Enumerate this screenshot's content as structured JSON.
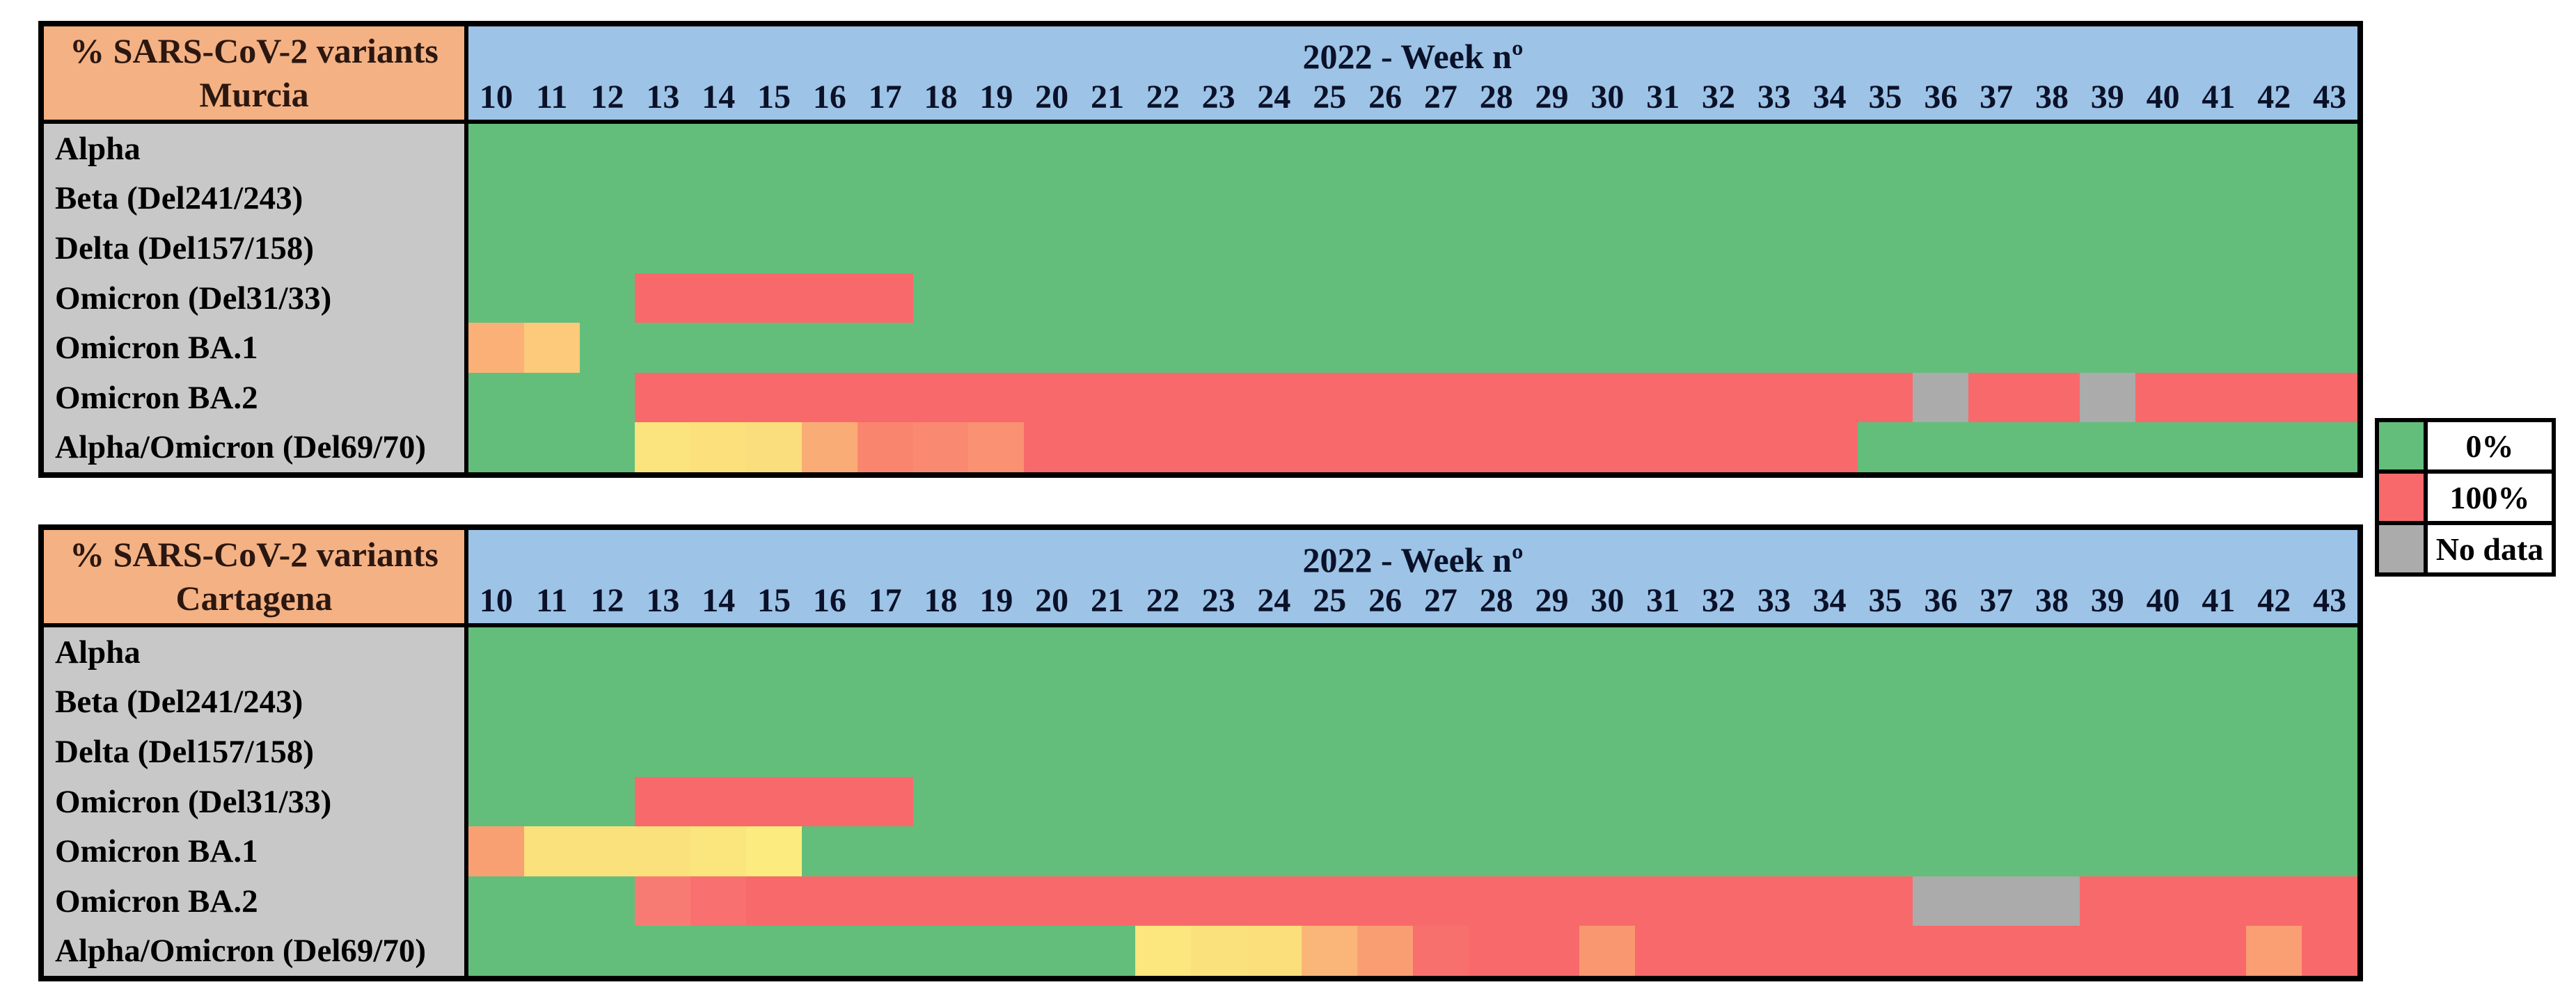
{
  "week_header": "2022 - Week nº",
  "weeks": [
    "10",
    "11",
    "12",
    "13",
    "14",
    "15",
    "16",
    "17",
    "18",
    "19",
    "20",
    "21",
    "22",
    "23",
    "24",
    "25",
    "26",
    "27",
    "28",
    "29",
    "30",
    "31",
    "32",
    "33",
    "34",
    "35",
    "36",
    "37",
    "38",
    "39",
    "40",
    "41",
    "42",
    "43"
  ],
  "palette": {
    "G": "#63BE7B",
    "R": "#F8696B",
    "N": "#ABABAB"
  },
  "colors": {
    "header_orange": "#F4B183",
    "header_blue": "#9DC3E6",
    "label_gray": "#C8C8C8",
    "border_black": "#000000",
    "green_0pct": "#63BE7B",
    "red_100pct": "#F8696B",
    "gray_nodata": "#ABABAB"
  },
  "legend": {
    "items": [
      {
        "label": "0%",
        "key": "G"
      },
      {
        "label": "100%",
        "key": "R"
      },
      {
        "label": "No data",
        "key": "N"
      }
    ]
  },
  "tables": [
    {
      "title_line1": "% SARS-CoV-2 variants",
      "region": "Murcia",
      "rows": [
        {
          "label": "Alpha",
          "cells": [
            "G*34"
          ]
        },
        {
          "label": "Beta (Del241/243)",
          "cells": [
            "G*34"
          ]
        },
        {
          "label": "Delta (Del157/158)",
          "cells": [
            "G*34"
          ]
        },
        {
          "label": "Omicron (Del31/33)",
          "cells": [
            "G*3",
            "R*5",
            "G*26"
          ]
        },
        {
          "label": "Omicron BA.1",
          "cells": [
            "#FBB077",
            "#FCCA7A",
            "G*32"
          ]
        },
        {
          "label": "Omicron BA.2",
          "cells": [
            "G*3",
            "R*23",
            "N",
            "R*2",
            "N",
            "R*4"
          ]
        },
        {
          "label": "Alpha/Omicron (Del69/70)",
          "cells": [
            "G*3",
            "#FBE37D",
            "#FBE07C",
            "#FADD7C",
            "#FAAC76",
            "#F9856E",
            "#F98970",
            "#F99172",
            "R*15",
            "G*9"
          ]
        }
      ]
    },
    {
      "title_line1": "% SARS-CoV-2 variants",
      "region": "Cartagena",
      "rows": [
        {
          "label": "Alpha",
          "cells": [
            "G*34"
          ]
        },
        {
          "label": "Beta (Del241/243)",
          "cells": [
            "G*34"
          ]
        },
        {
          "label": "Delta (Del157/158)",
          "cells": [
            "G*34"
          ]
        },
        {
          "label": "Omicron (Del31/33)",
          "cells": [
            "G*3",
            "R*5",
            "G*26"
          ]
        },
        {
          "label": "Omicron BA.1",
          "cells": [
            "#F9A073",
            "#FBE17C",
            "#FBE17C",
            "#FAE17C",
            "#FBE57D",
            "#FCEC80",
            "G*28"
          ]
        },
        {
          "label": "Omicron BA.2",
          "cells": [
            "G*3",
            "#F87B73",
            "#F87070",
            "R*21",
            "N*3",
            "R*5"
          ]
        },
        {
          "label": "Alpha/Omicron (Del69/70)",
          "cells": [
            "G*12",
            "#FCE67E",
            "#FBE17C",
            "#FBDF7B",
            "#FAB678",
            "#F99E73",
            "#F8706E",
            "R*2",
            "#F99870",
            "R*11",
            "#FA9E73",
            "R"
          ]
        }
      ]
    }
  ],
  "chart_data": [
    {
      "type": "heatmap",
      "title": "% SARS-CoV-2 variants Murcia",
      "xlabel": "2022 - Week nº",
      "x": [
        10,
        11,
        12,
        13,
        14,
        15,
        16,
        17,
        18,
        19,
        20,
        21,
        22,
        23,
        24,
        25,
        26,
        27,
        28,
        29,
        30,
        31,
        32,
        33,
        34,
        35,
        36,
        37,
        38,
        39,
        40,
        41,
        42,
        43
      ],
      "value_scale": "percent, 0 = green (#63BE7B), 100 = red (#F8696B), null = no data (gray)",
      "series": [
        {
          "name": "Alpha",
          "values": [
            0,
            0,
            0,
            0,
            0,
            0,
            0,
            0,
            0,
            0,
            0,
            0,
            0,
            0,
            0,
            0,
            0,
            0,
            0,
            0,
            0,
            0,
            0,
            0,
            0,
            0,
            0,
            0,
            0,
            0,
            0,
            0,
            0,
            0
          ]
        },
        {
          "name": "Beta (Del241/243)",
          "values": [
            0,
            0,
            0,
            0,
            0,
            0,
            0,
            0,
            0,
            0,
            0,
            0,
            0,
            0,
            0,
            0,
            0,
            0,
            0,
            0,
            0,
            0,
            0,
            0,
            0,
            0,
            0,
            0,
            0,
            0,
            0,
            0,
            0,
            0
          ]
        },
        {
          "name": "Delta (Del157/158)",
          "values": [
            0,
            0,
            0,
            0,
            0,
            0,
            0,
            0,
            0,
            0,
            0,
            0,
            0,
            0,
            0,
            0,
            0,
            0,
            0,
            0,
            0,
            0,
            0,
            0,
            0,
            0,
            0,
            0,
            0,
            0,
            0,
            0,
            0,
            0
          ]
        },
        {
          "name": "Omicron (Del31/33)",
          "values": [
            0,
            0,
            0,
            100,
            100,
            100,
            100,
            100,
            0,
            0,
            0,
            0,
            0,
            0,
            0,
            0,
            0,
            0,
            0,
            0,
            0,
            0,
            0,
            0,
            0,
            0,
            0,
            0,
            0,
            0,
            0,
            0,
            0,
            0
          ]
        },
        {
          "name": "Omicron BA.1",
          "values": [
            65,
            55,
            0,
            0,
            0,
            0,
            0,
            0,
            0,
            0,
            0,
            0,
            0,
            0,
            0,
            0,
            0,
            0,
            0,
            0,
            0,
            0,
            0,
            0,
            0,
            0,
            0,
            0,
            0,
            0,
            0,
            0,
            0,
            0
          ]
        },
        {
          "name": "Omicron BA.2",
          "values": [
            0,
            0,
            0,
            100,
            100,
            100,
            100,
            100,
            100,
            100,
            100,
            100,
            100,
            100,
            100,
            100,
            100,
            100,
            100,
            100,
            100,
            100,
            100,
            100,
            100,
            100,
            null,
            100,
            100,
            null,
            100,
            100,
            100,
            100
          ]
        },
        {
          "name": "Alpha/Omicron (Del69/70)",
          "values": [
            0,
            0,
            0,
            48,
            50,
            50,
            65,
            82,
            80,
            78,
            100,
            100,
            100,
            100,
            100,
            100,
            100,
            100,
            100,
            100,
            100,
            100,
            100,
            100,
            100,
            0,
            0,
            0,
            0,
            0,
            0,
            0,
            0,
            0
          ]
        }
      ]
    },
    {
      "type": "heatmap",
      "title": "% SARS-CoV-2 variants Cartagena",
      "xlabel": "2022 - Week nº",
      "x": [
        10,
        11,
        12,
        13,
        14,
        15,
        16,
        17,
        18,
        19,
        20,
        21,
        22,
        23,
        24,
        25,
        26,
        27,
        28,
        29,
        30,
        31,
        32,
        33,
        34,
        35,
        36,
        37,
        38,
        39,
        40,
        41,
        42,
        43
      ],
      "value_scale": "percent, 0 = green (#63BE7B), 100 = red (#F8696B), null = no data (gray)",
      "series": [
        {
          "name": "Alpha",
          "values": [
            0,
            0,
            0,
            0,
            0,
            0,
            0,
            0,
            0,
            0,
            0,
            0,
            0,
            0,
            0,
            0,
            0,
            0,
            0,
            0,
            0,
            0,
            0,
            0,
            0,
            0,
            0,
            0,
            0,
            0,
            0,
            0,
            0,
            0
          ]
        },
        {
          "name": "Beta (Del241/243)",
          "values": [
            0,
            0,
            0,
            0,
            0,
            0,
            0,
            0,
            0,
            0,
            0,
            0,
            0,
            0,
            0,
            0,
            0,
            0,
            0,
            0,
            0,
            0,
            0,
            0,
            0,
            0,
            0,
            0,
            0,
            0,
            0,
            0,
            0,
            0
          ]
        },
        {
          "name": "Delta (Del157/158)",
          "values": [
            0,
            0,
            0,
            0,
            0,
            0,
            0,
            0,
            0,
            0,
            0,
            0,
            0,
            0,
            0,
            0,
            0,
            0,
            0,
            0,
            0,
            0,
            0,
            0,
            0,
            0,
            0,
            0,
            0,
            0,
            0,
            0,
            0,
            0
          ]
        },
        {
          "name": "Omicron (Del31/33)",
          "values": [
            0,
            0,
            0,
            100,
            100,
            100,
            100,
            100,
            0,
            0,
            0,
            0,
            0,
            0,
            0,
            0,
            0,
            0,
            0,
            0,
            0,
            0,
            0,
            0,
            0,
            0,
            0,
            0,
            0,
            0,
            0,
            0,
            0,
            0
          ]
        },
        {
          "name": "Omicron BA.1",
          "values": [
            72,
            50,
            50,
            50,
            48,
            45,
            0,
            0,
            0,
            0,
            0,
            0,
            0,
            0,
            0,
            0,
            0,
            0,
            0,
            0,
            0,
            0,
            0,
            0,
            0,
            0,
            0,
            0,
            0,
            0,
            0,
            0,
            0,
            0
          ]
        },
        {
          "name": "Omicron BA.2",
          "values": [
            0,
            0,
            0,
            93,
            96,
            100,
            100,
            100,
            100,
            100,
            100,
            100,
            100,
            100,
            100,
            100,
            100,
            100,
            100,
            100,
            100,
            100,
            100,
            100,
            100,
            100,
            null,
            null,
            null,
            100,
            100,
            100,
            100,
            100
          ]
        },
        {
          "name": "Alpha/Omicron (Del69/70)",
          "values": [
            0,
            0,
            0,
            0,
            0,
            0,
            0,
            0,
            0,
            0,
            0,
            0,
            47,
            50,
            51,
            62,
            73,
            96,
            100,
            100,
            75,
            100,
            100,
            100,
            100,
            100,
            100,
            100,
            100,
            100,
            100,
            100,
            72,
            100
          ]
        }
      ]
    }
  ]
}
